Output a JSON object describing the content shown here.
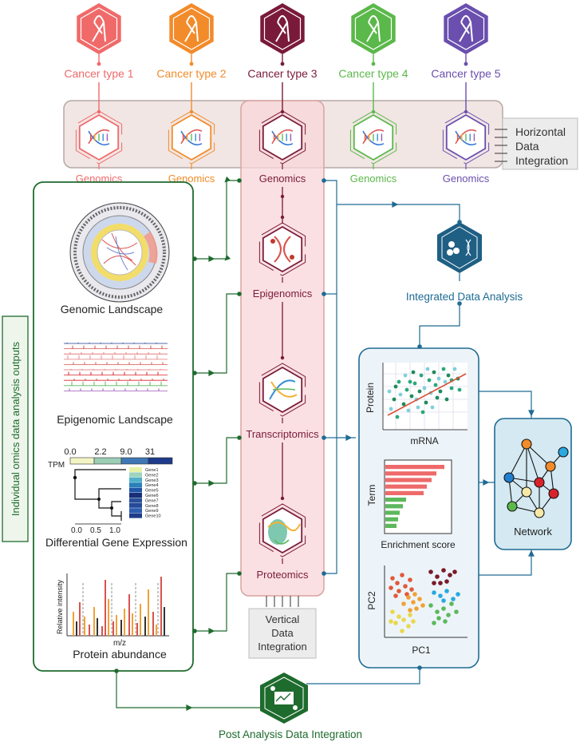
{
  "cancer_types": [
    {
      "label": "Cancer type 1",
      "color": "#f06a6a"
    },
    {
      "label": "Cancer type 2",
      "color": "#f28b2a"
    },
    {
      "label": "Cancer type 3",
      "color": "#7a1a3a"
    },
    {
      "label": "Cancer type 4",
      "color": "#5bb84a"
    },
    {
      "label": "Cancer type 5",
      "color": "#6a4fae"
    }
  ],
  "genomics_label": "Genomics",
  "horizontal_integration": {
    "line1": "Horizontal",
    "line2": "Data",
    "line3": "Integration"
  },
  "vertical_integration": {
    "line1": "Vertical",
    "line2": "Data",
    "line3": "Integration"
  },
  "omics_layers": [
    "Genomics",
    "Epigenomics",
    "Transcriptomics",
    "Proteomics"
  ],
  "side_label": "Individual omics data analysis outputs",
  "outputs": {
    "genomic": "Genomic Landscape",
    "epigenomic": "Epigenomic Landscape",
    "deg": "Differential Gene Expression",
    "protein": "Protein abundance"
  },
  "heatmap": {
    "legend_ticks": [
      "0.0",
      "2.2",
      "9.0",
      "31"
    ],
    "legend_title": "TPM",
    "genes": [
      "Gene1",
      "Gene2",
      "Gene3",
      "Gene4",
      "Gene5",
      "Gene6",
      "Gene7",
      "Gene8",
      "Gene9",
      "Gene10"
    ],
    "axis_ticks": [
      "0.0",
      "0.5",
      "1.0"
    ],
    "gene_colors": [
      "#e8f3a8",
      "#9ed3c0",
      "#4fb0c8",
      "#2a80ba",
      "#2056a8",
      "#1a2f78",
      "#2a4f9a",
      "#254a98",
      "#2e5db0",
      "#1e3c8a"
    ]
  },
  "ms_axes": {
    "y": "Relative intensity",
    "x": "m/z"
  },
  "integrated_analysis": "Integrated Data Analysis",
  "scatter_axes": {
    "y": "Protein",
    "x": "mRNA"
  },
  "enrichment_axes": {
    "y": "Term",
    "x": "Enrichment score"
  },
  "pca_axes": {
    "y": "PC2",
    "x": "PC1"
  },
  "network_label": "Network",
  "post_analysis": "Post Analysis Data Integration",
  "colors": {
    "green": "#1e6b2e",
    "blue": "#1f6b93",
    "maroon": "#7a1a3a"
  }
}
